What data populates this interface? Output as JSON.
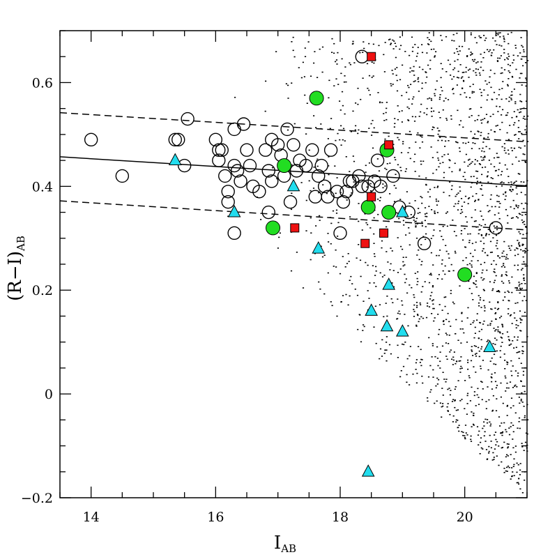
{
  "chart_data": {
    "type": "scatter",
    "xlabel": "I",
    "xlabel_sub": "AB",
    "ylabel": "(R−I)",
    "ylabel_sub": "AB",
    "xlim": [
      13.5,
      21
    ],
    "ylim": [
      -0.2,
      0.7
    ],
    "x_ticks": [
      14,
      16,
      18,
      20
    ],
    "x_tick_labels": [
      "14",
      "16",
      "18",
      "20"
    ],
    "x_minor_step": 0.5,
    "y_ticks": [
      -0.2,
      0,
      0.2,
      0.4,
      0.6
    ],
    "y_tick_labels": [
      "−0.2",
      "0",
      "0.2",
      "0.4",
      "0.6"
    ],
    "y_minor_step": 0.05,
    "grid": false,
    "legend": "none",
    "series": [
      {
        "marker": "open-circle",
        "color": "#000000",
        "points": [
          [
            14.0,
            0.49
          ],
          [
            14.5,
            0.42
          ],
          [
            15.4,
            0.49
          ],
          [
            15.5,
            0.44
          ],
          [
            15.55,
            0.53
          ],
          [
            16.0,
            0.49
          ],
          [
            16.05,
            0.45
          ],
          [
            16.1,
            0.47
          ],
          [
            16.15,
            0.42
          ],
          [
            16.2,
            0.39
          ],
          [
            16.2,
            0.37
          ],
          [
            16.3,
            0.51
          ],
          [
            16.3,
            0.44
          ],
          [
            16.35,
            0.43
          ],
          [
            16.4,
            0.41
          ],
          [
            16.45,
            0.52
          ],
          [
            16.5,
            0.47
          ],
          [
            16.55,
            0.44
          ],
          [
            16.6,
            0.4
          ],
          [
            16.7,
            0.39
          ],
          [
            16.8,
            0.47
          ],
          [
            16.85,
            0.43
          ],
          [
            16.9,
            0.41
          ],
          [
            16.9,
            0.49
          ],
          [
            17.0,
            0.48
          ],
          [
            17.05,
            0.46
          ],
          [
            17.1,
            0.42
          ],
          [
            17.15,
            0.51
          ],
          [
            17.2,
            0.37
          ],
          [
            17.25,
            0.48
          ],
          [
            17.3,
            0.43
          ],
          [
            17.35,
            0.45
          ],
          [
            17.45,
            0.44
          ],
          [
            17.55,
            0.47
          ],
          [
            17.6,
            0.38
          ],
          [
            17.65,
            0.42
          ],
          [
            17.7,
            0.44
          ],
          [
            17.75,
            0.4
          ],
          [
            17.8,
            0.38
          ],
          [
            17.85,
            0.47
          ],
          [
            17.95,
            0.39
          ],
          [
            18.05,
            0.37
          ],
          [
            18.1,
            0.39
          ],
          [
            18.15,
            0.41
          ],
          [
            18.2,
            0.41
          ],
          [
            18.3,
            0.42
          ],
          [
            18.35,
            0.4
          ],
          [
            18.45,
            0.4
          ],
          [
            18.55,
            0.41
          ],
          [
            18.6,
            0.45
          ],
          [
            18.65,
            0.4
          ],
          [
            18.85,
            0.42
          ],
          [
            18.95,
            0.36
          ],
          [
            19.1,
            0.35
          ],
          [
            19.35,
            0.29
          ],
          [
            16.3,
            0.31
          ],
          [
            16.85,
            0.35
          ],
          [
            18.0,
            0.31
          ],
          [
            18.35,
            0.65
          ],
          [
            20.5,
            0.32
          ],
          [
            15.35,
            0.49
          ],
          [
            16.05,
            0.47
          ]
        ]
      },
      {
        "marker": "filled-circle",
        "color": "#22dd22",
        "points": [
          [
            17.62,
            0.57
          ],
          [
            17.1,
            0.44
          ],
          [
            16.92,
            0.32
          ],
          [
            18.45,
            0.36
          ],
          [
            18.78,
            0.35
          ],
          [
            18.75,
            0.47
          ],
          [
            20.0,
            0.23
          ]
        ]
      },
      {
        "marker": "square",
        "color": "#ee1111",
        "points": [
          [
            18.5,
            0.65
          ],
          [
            18.78,
            0.48
          ],
          [
            18.5,
            0.38
          ],
          [
            17.27,
            0.32
          ],
          [
            18.7,
            0.31
          ],
          [
            18.4,
            0.29
          ]
        ]
      },
      {
        "marker": "triangle",
        "color": "#22ddee",
        "points": [
          [
            15.35,
            0.45
          ],
          [
            16.3,
            0.35
          ],
          [
            17.25,
            0.4
          ],
          [
            17.65,
            0.28
          ],
          [
            18.78,
            0.21
          ],
          [
            18.5,
            0.16
          ],
          [
            18.75,
            0.13
          ],
          [
            19.0,
            0.12
          ],
          [
            19.0,
            0.35
          ],
          [
            20.4,
            0.09
          ],
          [
            18.45,
            -0.15
          ]
        ]
      }
    ],
    "lines": [
      {
        "style": "solid",
        "x": [
          13.5,
          21
        ],
        "y": [
          0.457,
          0.401
        ]
      },
      {
        "style": "dashed",
        "x": [
          13.5,
          21
        ],
        "y": [
          0.542,
          0.486
        ]
      },
      {
        "style": "dashed",
        "x": [
          13.5,
          21
        ],
        "y": [
          0.372,
          0.316
        ]
      }
    ],
    "background_dots": {
      "description": "dense field of small dots, right side",
      "color": "#000000"
    }
  }
}
